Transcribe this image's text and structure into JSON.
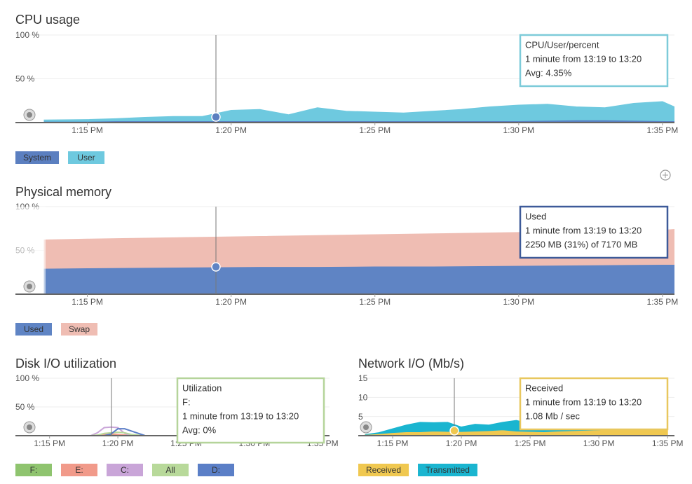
{
  "chart_data": [
    {
      "type": "area",
      "title": "CPU usage",
      "grid": true,
      "x": [
        "13:13:30",
        "13:15",
        "13:16",
        "13:17",
        "13:18",
        "13:19",
        "13:20",
        "13:21",
        "13:22",
        "13:23",
        "13:24",
        "13:25",
        "13:26",
        "13:27",
        "13:28",
        "13:29",
        "13:30",
        "13:31",
        "13:32",
        "13:33",
        "13:34",
        "13:35",
        "13:35:25"
      ],
      "xlim": [
        "13:12:30",
        "13:35:25"
      ],
      "xticks": [
        {
          "value": "13:15",
          "label": "1:15 PM"
        },
        {
          "value": "13:20",
          "label": "1:20 PM"
        },
        {
          "value": "13:25",
          "label": "1:25 PM"
        },
        {
          "value": "13:30",
          "label": "1:30 PM"
        },
        {
          "value": "13:35",
          "label": "1:35 PM"
        }
      ],
      "ylim": [
        0,
        100
      ],
      "yticks": [
        {
          "value": 50,
          "label": "50 %"
        },
        {
          "value": 100,
          "label": "100 %"
        }
      ],
      "series": [
        {
          "name": "System",
          "color": "#5b7fc0",
          "values": [
            1.5,
            1.5,
            2,
            2,
            2,
            2,
            2,
            2,
            2,
            2,
            2,
            2,
            2,
            2,
            2,
            2,
            2,
            2.5,
            3,
            3,
            2.5,
            2,
            2
          ]
        },
        {
          "name": "User",
          "color": "#6ec9df",
          "values": [
            1.5,
            2,
            2.5,
            4,
            5,
            5,
            12,
            13,
            7,
            15,
            11,
            10,
            9,
            11,
            13,
            16,
            18,
            18.5,
            15,
            14,
            19.5,
            22,
            16
          ]
        }
      ],
      "tooltip": {
        "border_color": "#7dcbd9",
        "lines": [
          "CPU/User/percent",
          "1 minute from 13:19 to 13:20",
          "Avg: 4.35%"
        ]
      }
    },
    {
      "type": "area",
      "title": "Physical memory",
      "grid": true,
      "x": [
        "13:13:30",
        "13:15",
        "13:17",
        "13:19",
        "13:21",
        "13:23",
        "13:25",
        "13:27",
        "13:29",
        "13:31",
        "13:33",
        "13:35",
        "13:35:25"
      ],
      "xlim": [
        "13:12:30",
        "13:35:25"
      ],
      "xticks": [
        {
          "value": "13:15",
          "label": "1:15 PM"
        },
        {
          "value": "13:20",
          "label": "1:20 PM"
        },
        {
          "value": "13:25",
          "label": "1:25 PM"
        },
        {
          "value": "13:30",
          "label": "1:30 PM"
        },
        {
          "value": "13:35",
          "label": "1:35 PM"
        }
      ],
      "ylim": [
        0,
        100
      ],
      "yticks": [
        {
          "value": 50,
          "label": "50 %"
        },
        {
          "value": 100,
          "label": "100 %"
        }
      ],
      "series": [
        {
          "name": "Used",
          "color": "#5f84c4",
          "values": [
            29.5,
            30,
            30.5,
            31,
            31.5,
            31.5,
            32,
            32,
            32.5,
            33,
            33.5,
            34,
            34
          ]
        },
        {
          "name": "Swap",
          "color": "#efbdb3",
          "values": [
            32.5,
            33,
            33.5,
            34,
            34.5,
            35.5,
            36,
            37,
            37.5,
            38,
            38.5,
            39,
            40
          ]
        }
      ],
      "tooltip": {
        "border_color": "#3d5a99",
        "lines": [
          "Used",
          "1 minute from 13:19 to 13:20",
          "2250 MB (31%) of 7170 MB"
        ]
      }
    },
    {
      "type": "line",
      "title": "Disk I/O utilization",
      "grid": true,
      "x": [
        "13:15",
        "13:18",
        "13:18:30",
        "13:19",
        "13:19:30",
        "13:20",
        "13:20:30",
        "13:21",
        "13:22",
        "13:25",
        "13:30",
        "13:35"
      ],
      "xlim": [
        "13:12:30",
        "13:35:30"
      ],
      "xticks": [
        {
          "value": "13:15",
          "label": "1:15 PM"
        },
        {
          "value": "13:20",
          "label": "1:20 PM"
        },
        {
          "value": "13:25",
          "label": "1:25 PM"
        },
        {
          "value": "13:30",
          "label": "1:30 PM"
        },
        {
          "value": "13:35",
          "label": "1:35 PM"
        }
      ],
      "ylim": [
        0,
        100
      ],
      "yticks": [
        {
          "value": 50,
          "label": "50 %"
        },
        {
          "value": 100,
          "label": "100 %"
        }
      ],
      "series": [
        {
          "name": "F:",
          "color": "#8fc46f",
          "values": [
            0,
            0,
            0,
            1,
            2,
            1,
            0,
            0,
            0,
            0,
            0,
            0
          ]
        },
        {
          "name": "E:",
          "color": "#f19a8a",
          "values": [
            0,
            0,
            0,
            2,
            3,
            2,
            1,
            0,
            0,
            0,
            0,
            0
          ]
        },
        {
          "name": "C:",
          "color": "#c9a5d8",
          "values": [
            0,
            0,
            5,
            14,
            15,
            14,
            4,
            0,
            0,
            0,
            0,
            0
          ]
        },
        {
          "name": "All",
          "color": "#b8d99a",
          "values": [
            0,
            0,
            1,
            4,
            5,
            6,
            5,
            2,
            0,
            0,
            0,
            0
          ]
        },
        {
          "name": "D:",
          "color": "#5b7fc7",
          "values": [
            0,
            0,
            0,
            0,
            3,
            12,
            12,
            8,
            0,
            0,
            0,
            0
          ]
        }
      ],
      "tooltip": {
        "border_color": "#b5d49a",
        "lines": [
          "Utilization",
          "F:",
          "1 minute from 13:19 to 13:20",
          "Avg: 0%"
        ]
      }
    },
    {
      "type": "area",
      "title": "Network I/O (Mb/s)",
      "grid": true,
      "x": [
        "13:13",
        "13:14",
        "13:15",
        "13:16",
        "13:17",
        "13:18",
        "13:19",
        "13:20",
        "13:21",
        "13:22",
        "13:23",
        "13:24",
        "13:25",
        "13:26",
        "13:27",
        "13:28",
        "13:29",
        "13:30",
        "13:31",
        "13:32",
        "13:33",
        "13:34",
        "13:35"
      ],
      "xlim": [
        "13:12:30",
        "13:35:30"
      ],
      "xticks": [
        {
          "value": "13:15",
          "label": "1:15 PM"
        },
        {
          "value": "13:20",
          "label": "1:20 PM"
        },
        {
          "value": "13:25",
          "label": "1:25 PM"
        },
        {
          "value": "13:30",
          "label": "1:30 PM"
        },
        {
          "value": "13:35",
          "label": "1:35 PM"
        }
      ],
      "ylim": [
        0,
        15
      ],
      "yticks": [
        5,
        10,
        15
      ],
      "series": [
        {
          "name": "Received",
          "color": "#f0c850",
          "values": [
            0.3,
            0.5,
            0.8,
            1,
            1,
            1.2,
            1.1,
            1.08,
            1.2,
            1.3,
            1.5,
            1.2,
            1.1,
            1,
            1.2,
            1.3,
            1.4,
            1.5,
            1.8,
            3,
            5,
            4,
            3
          ]
        },
        {
          "name": "Transmitted",
          "color": "#1ab5d0",
          "values": [
            0,
            0.3,
            1,
            1.8,
            2.5,
            2.2,
            2.4,
            1.2,
            1.8,
            1.5,
            2,
            2.8,
            2,
            1.5,
            1,
            1.2,
            1.5,
            1.8,
            2.5,
            4,
            5.5,
            3,
            1.8
          ]
        }
      ],
      "tooltip": {
        "border_color": "#e8c75e",
        "lines": [
          "Received",
          "1 minute from 13:19 to 13:20",
          "1.08 Mb / sec"
        ]
      }
    }
  ]
}
